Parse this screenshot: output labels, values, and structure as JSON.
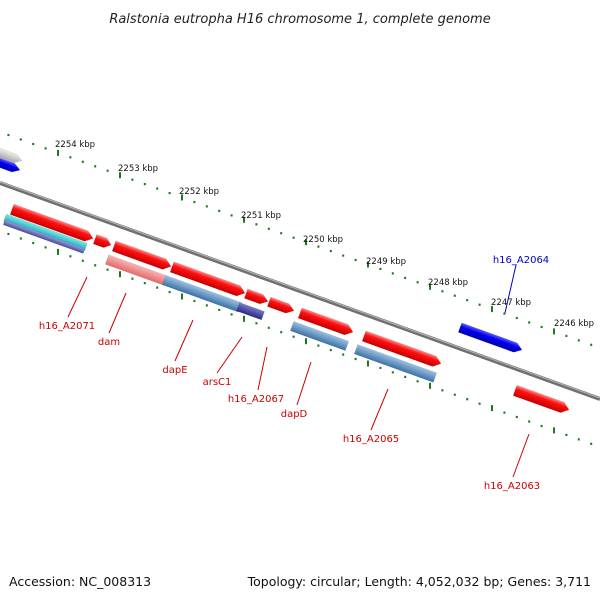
{
  "title": "Ralstonia eutropha H16 chromosome 1, complete genome",
  "footer": {
    "accession": "Accession: NC_008313",
    "summary": "Topology: circular; Length: 4,052,032 bp; Genes: 3,711"
  },
  "colors": {
    "backbone": "#8a8a8a",
    "tick": "#1a7a1a",
    "forward_gene": "#ff0000",
    "reverse_gene": "#0000ff",
    "gene_label_red": "#cc0000",
    "gene_label_blue": "#0000cc"
  },
  "scale_labels": [
    {
      "name": "kbp-2254",
      "text": "2254 kbp"
    },
    {
      "name": "kbp-2253",
      "text": "2253 kbp"
    },
    {
      "name": "kbp-2252",
      "text": "2252 kbp"
    },
    {
      "name": "kbp-2251",
      "text": "2251 kbp"
    },
    {
      "name": "kbp-2250",
      "text": "2250 kbp"
    },
    {
      "name": "kbp-2249",
      "text": "2249 kbp"
    },
    {
      "name": "kbp-2248",
      "text": "2248 kbp"
    },
    {
      "name": "kbp-2247",
      "text": "2247 kbp"
    },
    {
      "name": "kbp-2246",
      "text": "2246 kbp"
    }
  ],
  "gene_labels": [
    {
      "name": "gene-h16-a2071",
      "text": "h16_A2071",
      "color": "#cc0000"
    },
    {
      "name": "gene-dam",
      "text": "dam",
      "color": "#cc0000"
    },
    {
      "name": "gene-dape",
      "text": "dapE",
      "color": "#cc0000"
    },
    {
      "name": "gene-arsc1",
      "text": "arsC1",
      "color": "#cc0000"
    },
    {
      "name": "gene-h16-a2067",
      "text": "h16_A2067",
      "color": "#cc0000"
    },
    {
      "name": "gene-dapd",
      "text": "dapD",
      "color": "#cc0000"
    },
    {
      "name": "gene-h16-a2065",
      "text": "h16_A2065",
      "color": "#cc0000"
    },
    {
      "name": "gene-h16-a2064",
      "text": "h16_A2064",
      "color": "#0000cc"
    },
    {
      "name": "gene-h16-a2063",
      "text": "h16_A2063",
      "color": "#cc0000"
    }
  ]
}
